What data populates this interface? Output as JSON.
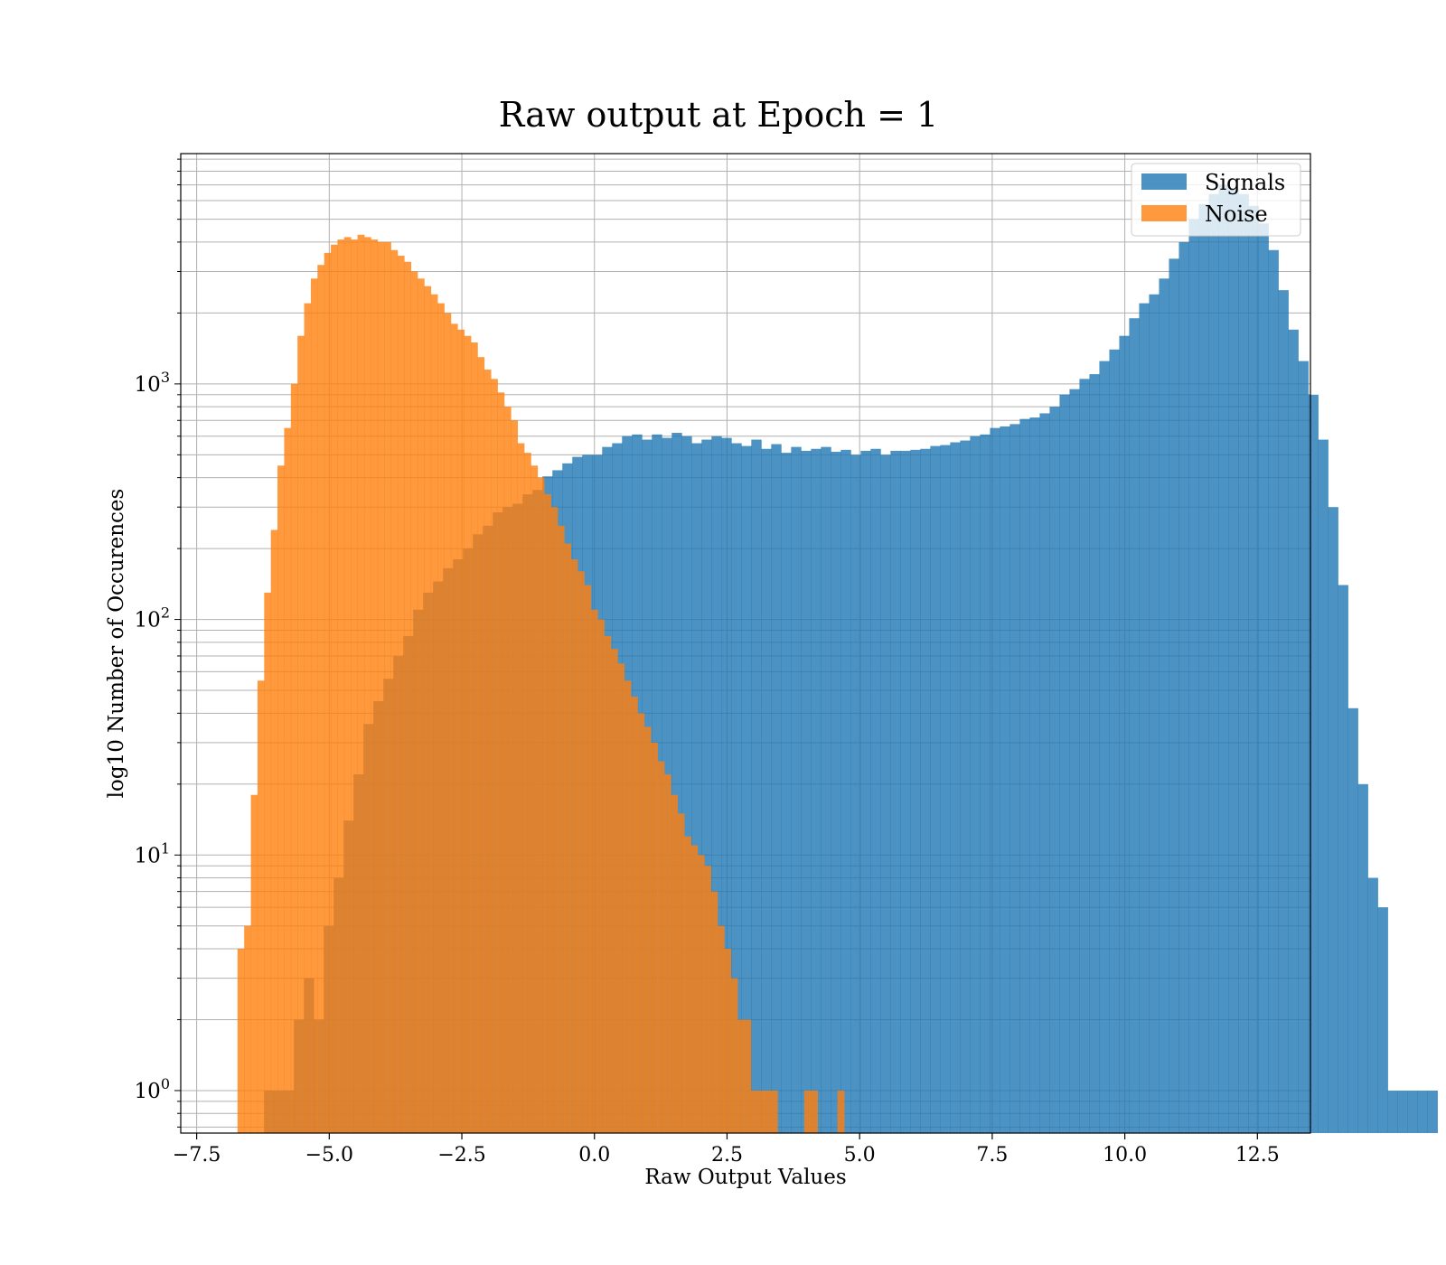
{
  "chart_data": {
    "type": "bar",
    "title": "Raw output at Epoch = 1",
    "xlabel": "Raw Output Values",
    "ylabel": "log10 Number of Occurences",
    "yscale": "log",
    "xlim": [
      -7.8,
      13.5
    ],
    "ylim": [
      0.66,
      9500
    ],
    "grid": true,
    "legend_position": "top-right",
    "xticks": [
      {
        "value": -7.5,
        "label": "−7.5"
      },
      {
        "value": -5.0,
        "label": "−5.0"
      },
      {
        "value": -2.5,
        "label": "−2.5"
      },
      {
        "value": 0.0,
        "label": "0.0"
      },
      {
        "value": 2.5,
        "label": "2.5"
      },
      {
        "value": 5.0,
        "label": "5.0"
      },
      {
        "value": 7.5,
        "label": "7.5"
      },
      {
        "value": 10.0,
        "label": "10.0"
      },
      {
        "value": 12.5,
        "label": "12.5"
      }
    ],
    "yticks": [
      {
        "value": 1,
        "base": "10",
        "exp": "0"
      },
      {
        "value": 10,
        "base": "10",
        "exp": "1"
      },
      {
        "value": 100,
        "base": "10",
        "exp": "2"
      },
      {
        "value": 1000,
        "base": "10",
        "exp": "3"
      }
    ],
    "series": [
      {
        "name": "Signals",
        "color": "#1f77b4",
        "opacity": 0.8,
        "bin_start": -6.23,
        "bin_width": 0.1875,
        "counts": [
          1,
          1,
          1,
          2,
          3,
          2,
          5,
          8,
          14,
          22,
          36,
          45,
          56,
          70,
          85,
          110,
          130,
          145,
          165,
          180,
          200,
          230,
          250,
          285,
          300,
          310,
          340,
          355,
          405,
          430,
          460,
          490,
          500,
          500,
          540,
          560,
          600,
          610,
          580,
          610,
          590,
          620,
          600,
          560,
          580,
          600,
          590,
          560,
          545,
          580,
          530,
          555,
          510,
          540,
          520,
          530,
          540,
          515,
          525,
          500,
          520,
          530,
          500,
          520,
          520,
          525,
          530,
          545,
          550,
          565,
          575,
          600,
          610,
          650,
          660,
          675,
          710,
          720,
          750,
          800,
          900,
          950,
          1050,
          1100,
          1250,
          1400,
          1600,
          1900,
          2200,
          2400,
          2800,
          3400,
          4000,
          5000,
          5800,
          6400,
          7000,
          6700,
          6400,
          5700,
          4800,
          3700,
          2500,
          1700,
          1250,
          900,
          580,
          300,
          140,
          42,
          20,
          8,
          6,
          1,
          1,
          1,
          1,
          1,
          0,
          1
        ]
      },
      {
        "name": "Noise",
        "color": "#ff7f0e",
        "opacity": 0.8,
        "bin_start": -6.73,
        "bin_width": 0.1257,
        "counts": [
          4,
          5,
          18,
          55,
          130,
          240,
          450,
          650,
          1000,
          1600,
          2200,
          2800,
          3200,
          3600,
          3900,
          4100,
          4200,
          4100,
          4300,
          4200,
          4100,
          4000,
          4000,
          3700,
          3500,
          3300,
          3000,
          2800,
          2600,
          2400,
          2200,
          2000,
          1800,
          1700,
          1600,
          1500,
          1300,
          1150,
          1050,
          920,
          800,
          700,
          560,
          510,
          450,
          400,
          340,
          300,
          250,
          210,
          180,
          160,
          140,
          110,
          100,
          85,
          75,
          65,
          55,
          47,
          40,
          35,
          30,
          25,
          22,
          18,
          15,
          12,
          11,
          10,
          9,
          7,
          5,
          4,
          3,
          2,
          2,
          1,
          1,
          1,
          1,
          0,
          0,
          0,
          0,
          1,
          1,
          0,
          0,
          0,
          1
        ]
      }
    ]
  }
}
